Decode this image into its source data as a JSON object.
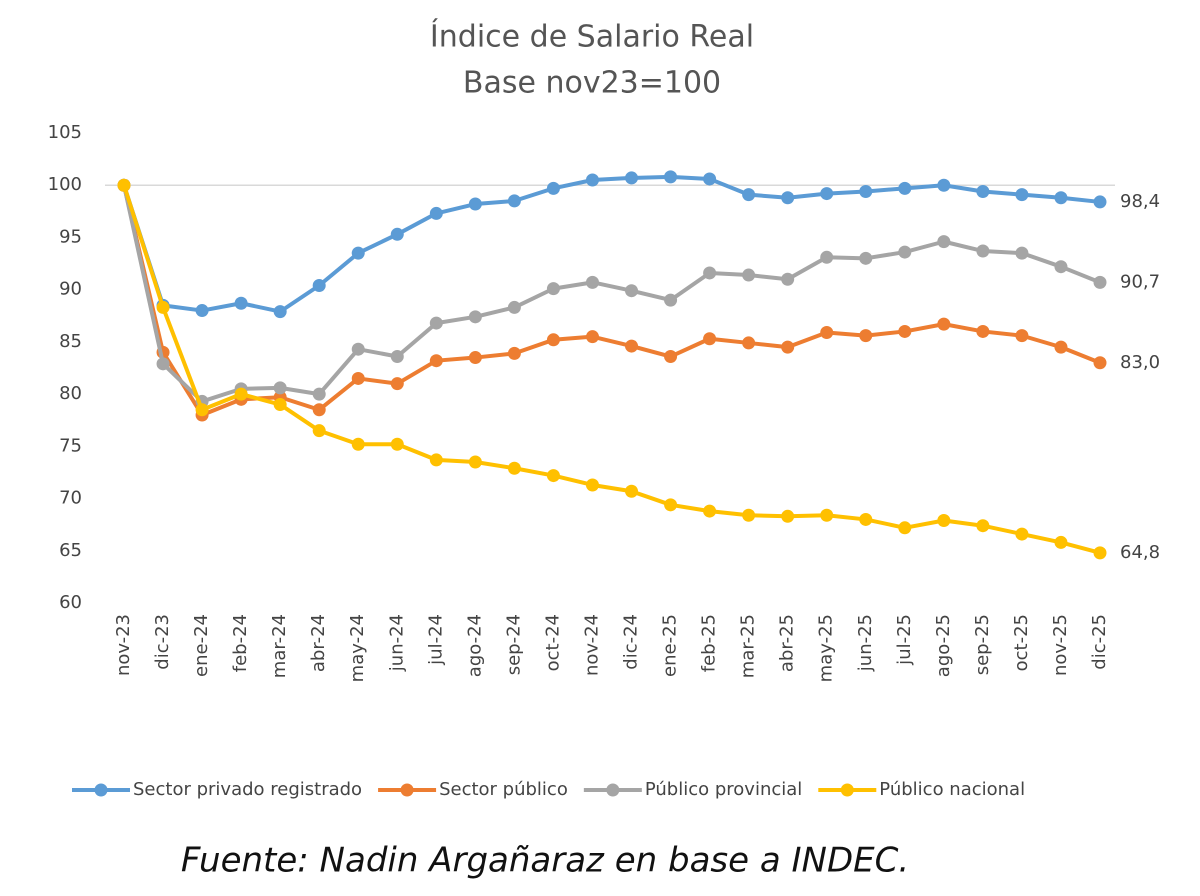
{
  "chart_data": {
    "type": "line",
    "title": "Índice de Salario Real",
    "subtitle": "Base nov23=100",
    "source": "Fuente: Nadin Argañaraz en base a INDEC.",
    "categories": [
      "nov-23",
      "dic-23",
      "ene-24",
      "feb-24",
      "mar-24",
      "abr-24",
      "may-24",
      "jun-24",
      "jul-24",
      "ago-24",
      "sep-24",
      "oct-24",
      "nov-24",
      "dic-24",
      "ene-25",
      "feb-25",
      "mar-25",
      "abr-25",
      "may-25",
      "jun-25",
      "jul-25",
      "ago-25",
      "sep-25",
      "oct-25",
      "nov-25",
      "dic-25"
    ],
    "ylim": [
      60,
      105
    ],
    "yticks": [
      60,
      65,
      70,
      75,
      80,
      85,
      90,
      95,
      100,
      105
    ],
    "reference_line": 100,
    "legend": "bottom",
    "series": [
      {
        "name": "Sector privado registrado",
        "color": "#5b9bd5",
        "values": [
          100,
          88.5,
          88.0,
          88.7,
          87.9,
          90.4,
          93.5,
          95.3,
          97.3,
          98.2,
          98.5,
          99.7,
          100.5,
          100.7,
          100.8,
          100.6,
          99.1,
          98.8,
          99.2,
          99.4,
          99.7,
          100.0,
          99.4,
          99.1,
          98.8,
          98.4
        ],
        "value_labels": [
          null,
          null,
          null,
          null,
          null,
          null,
          null,
          null,
          null,
          null,
          null,
          null,
          null,
          null,
          null,
          null,
          null,
          null,
          null,
          null,
          null,
          null,
          null,
          null,
          null,
          "98,4"
        ]
      },
      {
        "name": "Sector público",
        "color": "#ed7d31",
        "values": [
          100,
          84.0,
          78.0,
          79.5,
          79.7,
          78.5,
          81.5,
          81.0,
          83.2,
          83.5,
          83.9,
          85.2,
          85.5,
          84.6,
          83.6,
          85.3,
          84.9,
          84.5,
          85.9,
          85.6,
          86.0,
          86.7,
          86.0,
          85.6,
          84.5,
          83.0
        ],
        "value_labels": [
          null,
          null,
          null,
          null,
          null,
          null,
          null,
          null,
          null,
          null,
          null,
          null,
          null,
          null,
          null,
          null,
          null,
          null,
          null,
          null,
          null,
          null,
          null,
          null,
          null,
          "83,0"
        ]
      },
      {
        "name": "Público provincial",
        "color": "#a5a5a5",
        "values": [
          100,
          82.9,
          79.3,
          80.5,
          80.6,
          80.0,
          84.3,
          83.6,
          86.8,
          87.4,
          88.3,
          90.1,
          90.7,
          89.9,
          89.0,
          91.6,
          91.4,
          91.0,
          93.1,
          93.0,
          93.6,
          94.6,
          93.7,
          93.5,
          92.2,
          90.7
        ],
        "value_labels": [
          null,
          null,
          null,
          null,
          null,
          null,
          null,
          null,
          null,
          null,
          null,
          null,
          null,
          null,
          null,
          null,
          null,
          null,
          null,
          null,
          null,
          null,
          null,
          null,
          null,
          "90,7"
        ]
      },
      {
        "name": "Público nacional",
        "color": "#ffc000",
        "values": [
          100,
          88.3,
          78.5,
          80.0,
          79.0,
          76.5,
          75.2,
          75.2,
          73.7,
          73.5,
          72.9,
          72.2,
          71.3,
          70.7,
          69.4,
          68.8,
          68.4,
          68.3,
          68.4,
          68.0,
          67.2,
          67.9,
          67.4,
          66.6,
          65.8,
          64.8
        ],
        "value_labels": [
          null,
          null,
          null,
          null,
          null,
          null,
          null,
          null,
          null,
          null,
          null,
          null,
          null,
          null,
          null,
          null,
          null,
          null,
          null,
          null,
          null,
          null,
          null,
          null,
          null,
          "64,8"
        ]
      }
    ]
  }
}
